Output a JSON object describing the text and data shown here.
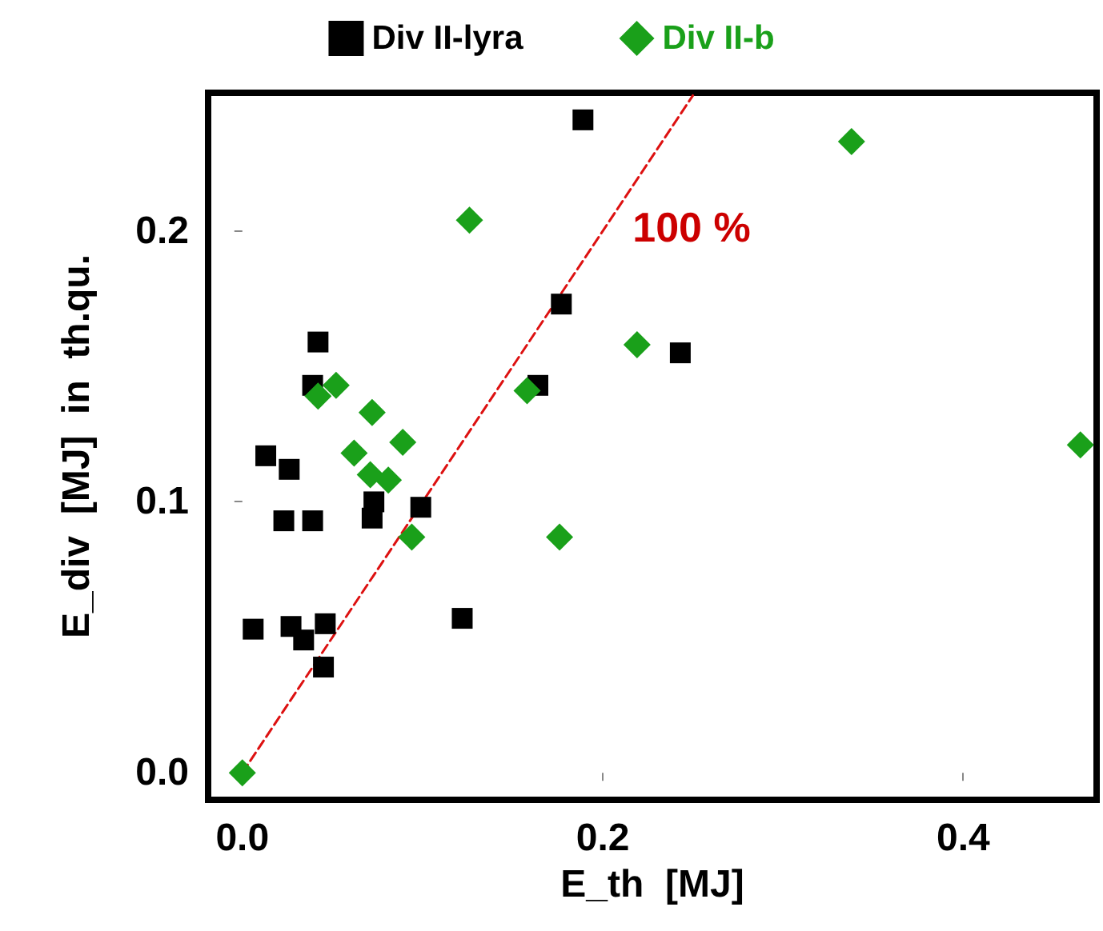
{
  "chart_data": {
    "type": "scatter",
    "xlabel": "E_th  [MJ]",
    "ylabel": "E_div  [MJ]  in  th.qu.",
    "xlim": [
      -0.019,
      0.474
    ],
    "ylim": [
      -0.01,
      0.251
    ],
    "xticks": [
      {
        "value": 0,
        "label": "0.0"
      },
      {
        "value": 0.2,
        "label": "0.2"
      },
      {
        "value": 0.4,
        "label": "0.4"
      }
    ],
    "yticks": [
      {
        "value": 0,
        "label": "0.0"
      },
      {
        "value": 0.1,
        "label": "0.1"
      },
      {
        "value": 0.2,
        "label": "0.2"
      }
    ],
    "grid": false,
    "legend": "top",
    "annotations": [
      "100 %"
    ],
    "series": [
      {
        "name": "Div II-lyra",
        "color": "#000000",
        "marker": "square",
        "x": [
          0.189,
          0.177,
          0.042,
          0.039,
          0.164,
          0.013,
          0.026,
          0.073,
          0.072,
          0.023,
          0.039,
          0.099,
          0.006,
          0.027,
          0.046,
          0.034,
          0.045,
          0.122,
          0.243
        ],
        "values": [
          0.241,
          0.173,
          0.159,
          0.143,
          0.143,
          0.117,
          0.112,
          0.1,
          0.094,
          0.093,
          0.093,
          0.098,
          0.053,
          0.054,
          0.055,
          0.049,
          0.039,
          0.057,
          0.155
        ]
      },
      {
        "name": "Div II-b",
        "color": "#1aa01a",
        "marker": "diamond",
        "x": [
          0,
          0.126,
          0.219,
          0.042,
          0.052,
          0.072,
          0.089,
          0.062,
          0.071,
          0.081,
          0.094,
          0.176,
          0.158,
          0.338,
          0.465
        ],
        "values": [
          0,
          0.204,
          0.158,
          0.139,
          0.143,
          0.133,
          0.122,
          0.118,
          0.11,
          0.108,
          0.087,
          0.087,
          0.141,
          0.233,
          0.121
        ]
      },
      {
        "type": "line",
        "color": "#dd1111",
        "line_style": "dashed",
        "marker": "none",
        "x": [
          0,
          0.25
        ],
        "values": [
          0,
          0.25
        ]
      }
    ]
  }
}
